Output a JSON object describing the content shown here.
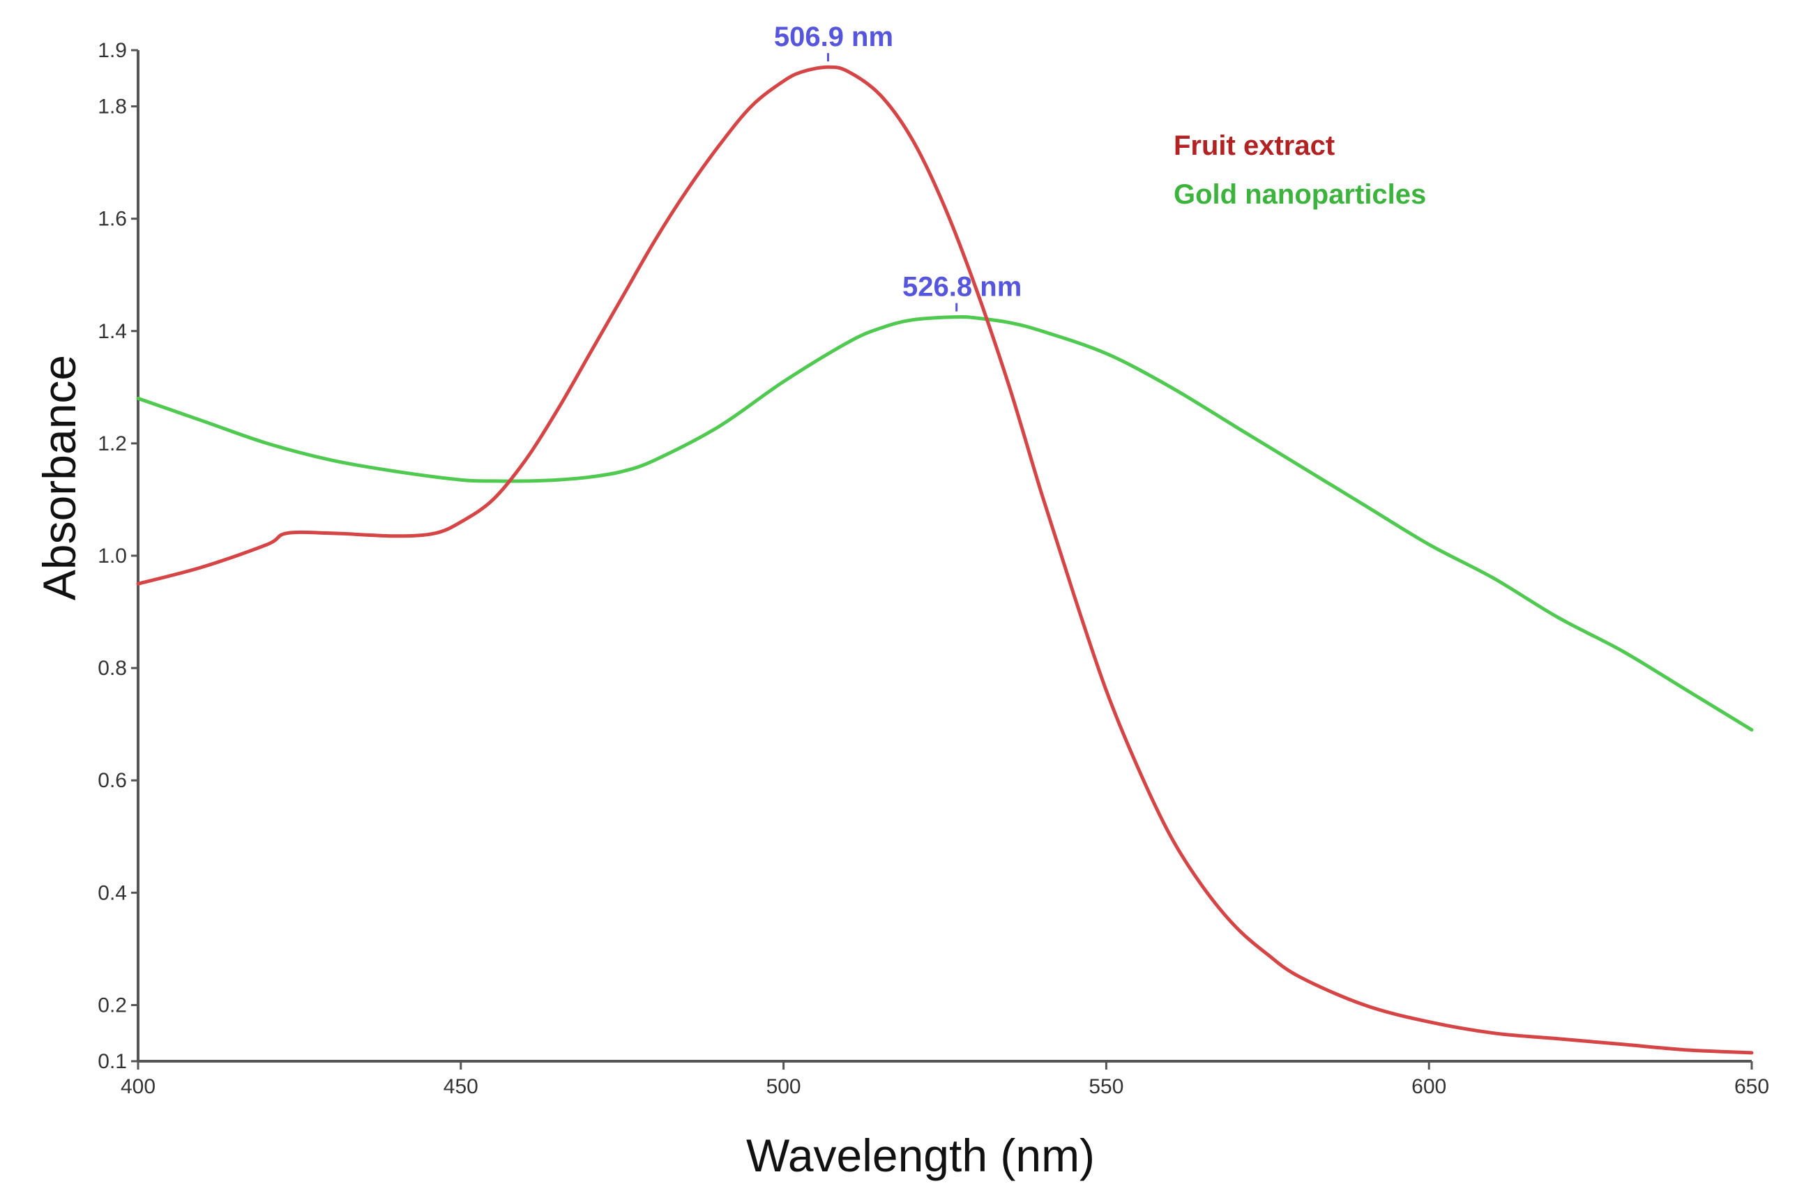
{
  "chart_data": {
    "type": "line",
    "title": "",
    "xlabel": "Wavelength (nm)",
    "ylabel": "Absorbance",
    "xlim": [
      400,
      650
    ],
    "ylim": [
      0.1,
      1.9
    ],
    "xticks": [
      400,
      450,
      500,
      550,
      600,
      650
    ],
    "xtick_labels": [
      "400",
      "450",
      "500",
      "550",
      "600",
      "650"
    ],
    "yticks": [
      0.1,
      0.2,
      0.4,
      0.6,
      0.8,
      1.0,
      1.2,
      1.4,
      1.6,
      1.8,
      1.9
    ],
    "ytick_labels": [
      "0.1",
      "0.2",
      "0.4",
      "0.6",
      "0.8",
      "1.0",
      "1.2",
      "1.4",
      "1.6",
      "1.8",
      "1.9"
    ],
    "grid": false,
    "legend_position": "top-right",
    "series": [
      {
        "name": "Fruit extract",
        "color": "#d64545",
        "legend_color": "#b22222",
        "x": [
          400,
          410,
          420,
          423,
          430,
          440,
          446,
          450,
          455,
          460,
          465,
          470,
          475,
          480,
          485,
          490,
          495,
          500,
          503,
          506.9,
          510,
          515,
          520,
          525,
          530,
          535,
          540,
          545,
          550,
          555,
          560,
          565,
          570,
          575,
          580,
          590,
          600,
          610,
          620,
          630,
          640,
          650
        ],
        "y": [
          0.95,
          0.98,
          1.02,
          1.04,
          1.04,
          1.035,
          1.04,
          1.06,
          1.1,
          1.17,
          1.26,
          1.36,
          1.46,
          1.56,
          1.65,
          1.73,
          1.8,
          1.845,
          1.862,
          1.87,
          1.862,
          1.82,
          1.74,
          1.62,
          1.47,
          1.3,
          1.11,
          0.93,
          0.76,
          0.62,
          0.5,
          0.41,
          0.34,
          0.29,
          0.25,
          0.2,
          0.17,
          0.15,
          0.14,
          0.13,
          0.12,
          0.115
        ]
      },
      {
        "name": "Gold nanoparticles",
        "color": "#4fc94f",
        "legend_color": "#3cb33c",
        "x": [
          400,
          410,
          420,
          430,
          440,
          450,
          455,
          460,
          465,
          470,
          475,
          480,
          490,
          500,
          510,
          515,
          520,
          526.8,
          530,
          535,
          540,
          550,
          560,
          570,
          580,
          590,
          600,
          610,
          620,
          630,
          640,
          650
        ],
        "y": [
          1.28,
          1.24,
          1.2,
          1.17,
          1.15,
          1.135,
          1.133,
          1.133,
          1.135,
          1.14,
          1.15,
          1.17,
          1.23,
          1.31,
          1.38,
          1.405,
          1.42,
          1.425,
          1.423,
          1.415,
          1.4,
          1.36,
          1.3,
          1.23,
          1.16,
          1.09,
          1.02,
          0.96,
          0.89,
          0.83,
          0.76,
          0.69
        ]
      }
    ],
    "annotations": [
      {
        "text": "506.9 nm",
        "x": 506.9,
        "y": 1.87,
        "color": "#5555dd"
      },
      {
        "text": "526.8 nm",
        "x": 526.8,
        "y": 1.425,
        "color": "#5555dd"
      }
    ]
  }
}
